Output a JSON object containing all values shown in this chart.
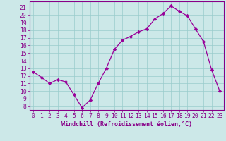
{
  "x": [
    0,
    1,
    2,
    3,
    4,
    5,
    6,
    7,
    8,
    9,
    10,
    11,
    12,
    13,
    14,
    15,
    16,
    17,
    18,
    19,
    20,
    21,
    22,
    23
  ],
  "y": [
    12.5,
    11.8,
    11.0,
    11.5,
    11.2,
    9.5,
    7.8,
    8.8,
    11.0,
    13.0,
    15.5,
    16.7,
    17.2,
    17.8,
    18.2,
    19.5,
    20.2,
    21.2,
    20.5,
    19.9,
    18.2,
    16.5,
    12.8,
    10.0
  ],
  "line_color": "#990099",
  "marker": "D",
  "marker_size": 2.2,
  "bg_color": "#cce8e8",
  "grid_color": "#99cccc",
  "xlabel": "Windchill (Refroidissement éolien,°C)",
  "xlim": [
    -0.5,
    23.5
  ],
  "ylim": [
    7.5,
    21.8
  ],
  "yticks": [
    8,
    9,
    10,
    11,
    12,
    13,
    14,
    15,
    16,
    17,
    18,
    19,
    20,
    21
  ],
  "xticks": [
    0,
    1,
    2,
    3,
    4,
    5,
    6,
    7,
    8,
    9,
    10,
    11,
    12,
    13,
    14,
    15,
    16,
    17,
    18,
    19,
    20,
    21,
    22,
    23
  ],
  "tick_label_color": "#880088",
  "axis_color": "#880088",
  "xlabel_fontsize": 6.0,
  "tick_fontsize": 5.8,
  "linewidth": 0.9
}
